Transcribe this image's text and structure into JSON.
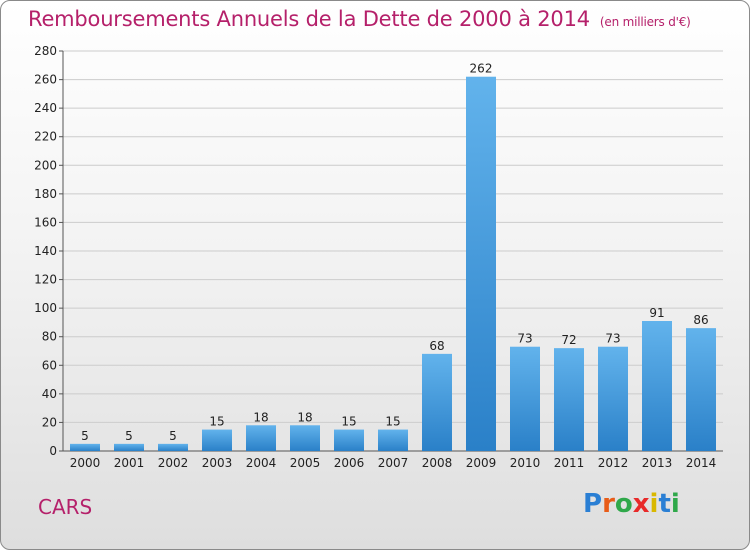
{
  "title": "Remboursements Annuels de la Dette de 2000 à 2014",
  "unit_note": "(en milliers d'€)",
  "commune": "CARS",
  "logo": {
    "text": "Proxiti",
    "colors": [
      "#2a7fd4",
      "#e85c18",
      "#2fa84a",
      "#e82a2a",
      "#d9b800",
      "#2a7fd4",
      "#2fa84a"
    ]
  },
  "colors": {
    "title": "#b5206a",
    "bar_light": "#62b3ec",
    "bar_dark": "#2a80c8",
    "grid": "#cccccc"
  },
  "chart_data": {
    "type": "bar",
    "categories": [
      "2000",
      "2001",
      "2002",
      "2003",
      "2004",
      "2005",
      "2006",
      "2007",
      "2008",
      "2009",
      "2010",
      "2011",
      "2012",
      "2013",
      "2014"
    ],
    "values": [
      5,
      5,
      5,
      15,
      18,
      18,
      15,
      15,
      68,
      262,
      73,
      72,
      73,
      91,
      86
    ],
    "ylim": [
      0,
      280
    ],
    "yticks": [
      0,
      20,
      40,
      60,
      80,
      100,
      120,
      140,
      160,
      180,
      200,
      220,
      240,
      260,
      280
    ],
    "grid": true,
    "xlabel": "",
    "ylabel": ""
  }
}
